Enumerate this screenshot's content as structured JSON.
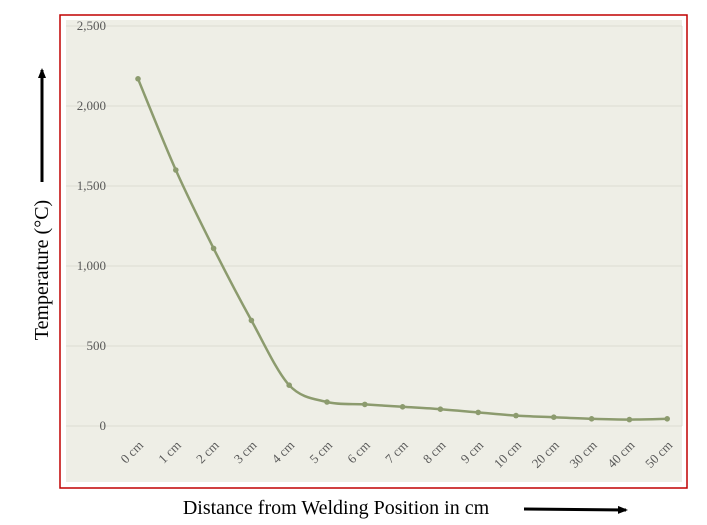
{
  "chart_data": {
    "type": "line",
    "title": "",
    "xlabel": "Distance from Welding Position in cm",
    "ylabel": "Temperature (°C)",
    "categories": [
      "0 cm",
      "1 cm",
      "2 cm",
      "3 cm",
      "4 cm",
      "5 cm",
      "6 cm",
      "7 cm",
      "8 cm",
      "9 cm",
      "10 cm",
      "20 cm",
      "30 cm",
      "40 cm",
      "50 cm"
    ],
    "series": [
      {
        "values": [
          2170,
          1600,
          1110,
          660,
          255,
          150,
          135,
          120,
          105,
          85,
          65,
          55,
          45,
          40,
          45
        ]
      }
    ],
    "ylim": [
      0,
      2500
    ],
    "yticks": [
      0,
      500,
      1000,
      1500,
      2000,
      2500
    ],
    "ytick_labels": [
      "0",
      "500",
      "1,000",
      "1,500",
      "2,000",
      "2,500"
    ],
    "grid": true,
    "legend": "none",
    "colors": {
      "line": "#8c9b6e",
      "marker": "#8c9b6e",
      "grid": "#dcdcd2",
      "plot_background": "#eeeee6",
      "frame": "#c00000"
    }
  }
}
